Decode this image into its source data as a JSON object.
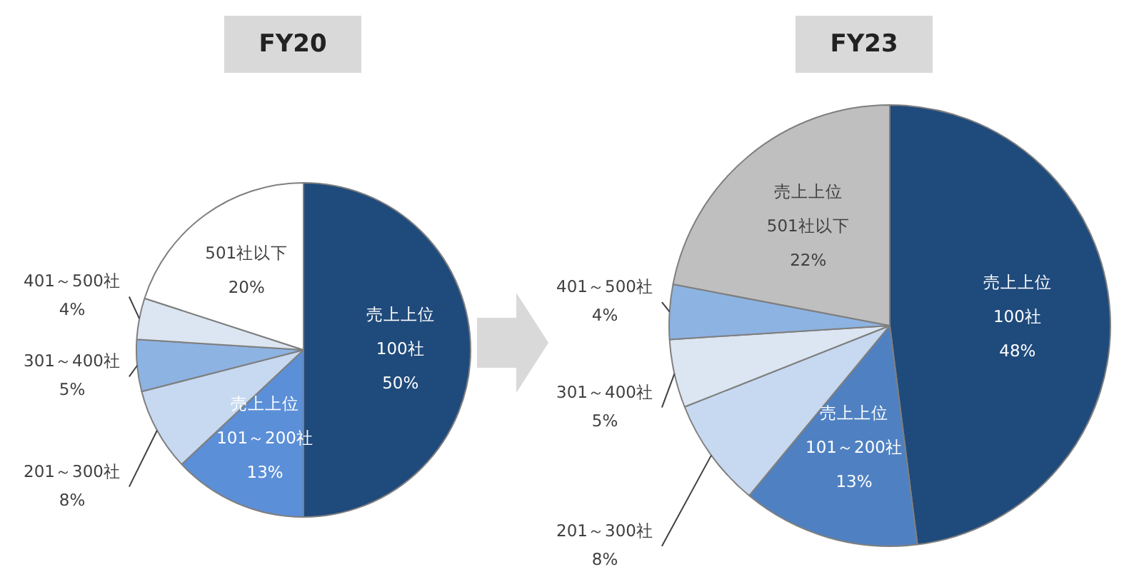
{
  "chart_data": [
    {
      "type": "pie",
      "title": "FY20",
      "categories": [
        "売上上位\n100社",
        "売上上位\n101～200社",
        "201～300社",
        "301～400社",
        "401～500社",
        "501社以下"
      ],
      "values": [
        50,
        13,
        8,
        5,
        4,
        20
      ],
      "colors": [
        "#1f4a7c",
        "#5b8fd8",
        "#c6d9f1",
        "#8db3e2",
        "#dce6f2",
        "#ffffff"
      ],
      "value_labels": [
        "50%",
        "13%",
        "8%",
        "5%",
        "4%",
        "20%"
      ]
    },
    {
      "type": "pie",
      "title": "FY23",
      "categories": [
        "売上上位\n100社",
        "売上上位\n101～200社",
        "201～300社",
        "301～400社",
        "401～500社",
        "売上上位\n501社以下"
      ],
      "values": [
        48,
        13,
        8,
        5,
        4,
        22
      ],
      "colors": [
        "#1f4a7c",
        "#4f81c2",
        "#c6d9f1",
        "#dce6f2",
        "#8db3e2",
        "#bfbfbf"
      ],
      "value_labels": [
        "48%",
        "13%",
        "8%",
        "5%",
        "4%",
        "22%"
      ]
    }
  ]
}
